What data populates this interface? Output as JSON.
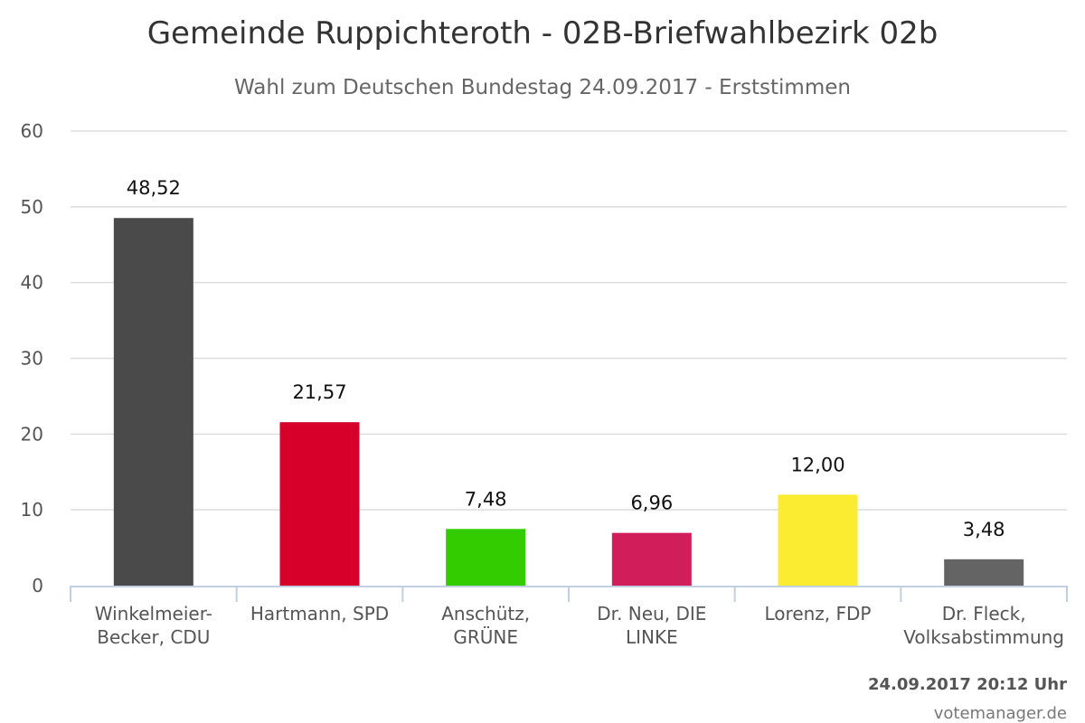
{
  "chart_data": {
    "type": "bar",
    "title": "Gemeinde Ruppichteroth - 02B-Briefwahlbezirk 02b",
    "subtitle": "Wahl zum Deutschen Bundestag 24.09.2017 - Erststimmen",
    "categories": [
      [
        "Winkelmeier-",
        "Becker, CDU"
      ],
      [
        "Hartmann, SPD"
      ],
      [
        "Anschütz,",
        "GRÜNE"
      ],
      [
        "Dr. Neu, DIE",
        "LINKE"
      ],
      [
        "Lorenz, FDP"
      ],
      [
        "Dr. Fleck,",
        "Volksabstimmung"
      ]
    ],
    "values": [
      48.52,
      21.57,
      7.48,
      6.96,
      12.0,
      3.48
    ],
    "value_labels": [
      "48,52",
      "21,57",
      "7,48",
      "6,96",
      "12,00",
      "3,48"
    ],
    "colors": [
      "#4a4a4a",
      "#d7002a",
      "#33cc00",
      "#d11d5a",
      "#fbeb31",
      "#646464"
    ],
    "ylim": [
      0,
      60
    ],
    "yticks": [
      "0",
      "10",
      "20",
      "30",
      "40",
      "50",
      "60"
    ],
    "grid": true,
    "legend": "none"
  },
  "footer": {
    "timestamp": "24.09.2017 20:12 Uhr",
    "credit": "votemanager.de"
  }
}
